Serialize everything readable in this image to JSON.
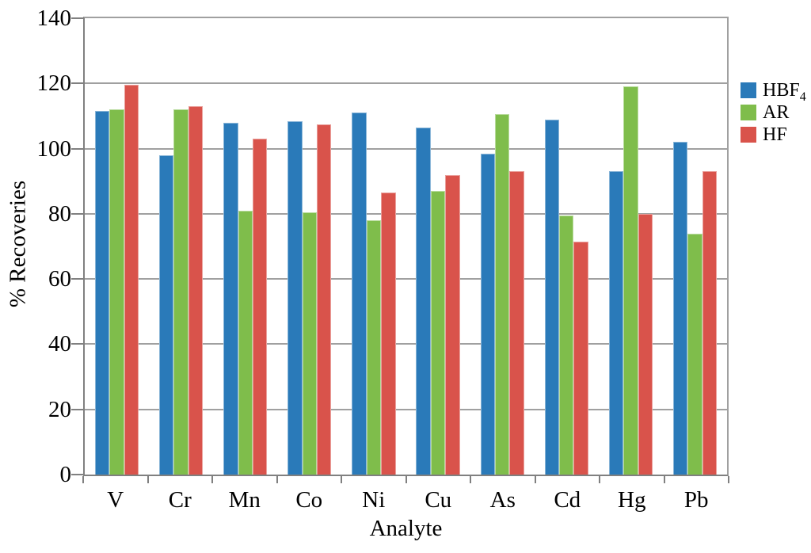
{
  "chart_data": {
    "type": "bar",
    "title": "",
    "xlabel": "Analyte",
    "ylabel": "% Recoveries",
    "categories": [
      "V",
      "Cr",
      "Mn",
      "Co",
      "Ni",
      "Cu",
      "As",
      "Cd",
      "Hg",
      "Pb"
    ],
    "series": [
      {
        "name": "HBF",
        "name_subscript": "4",
        "color": "#2A7AB9",
        "values": [
          111.5,
          98,
          108,
          108.5,
          111,
          106.5,
          98.5,
          109,
          93,
          102
        ]
      },
      {
        "name": "AR",
        "name_subscript": "",
        "color": "#7FBD4B",
        "values": [
          112,
          112,
          81,
          80.5,
          78,
          87,
          110.5,
          79.5,
          119,
          74
        ]
      },
      {
        "name": "HF",
        "name_subscript": "",
        "color": "#D9534B",
        "values": [
          119.5,
          113,
          103,
          107.5,
          86.5,
          92,
          93,
          71.5,
          80,
          93
        ]
      }
    ],
    "ylim": [
      0,
      140
    ],
    "yticks": [
      0,
      20,
      40,
      60,
      80,
      100,
      120,
      140
    ],
    "grid": "horizontal",
    "legend_position": "right"
  },
  "style_colors": {
    "background": "#FFFFFF",
    "gridline": "#A0A0A0",
    "axis": "#808080",
    "text": "#000000"
  }
}
